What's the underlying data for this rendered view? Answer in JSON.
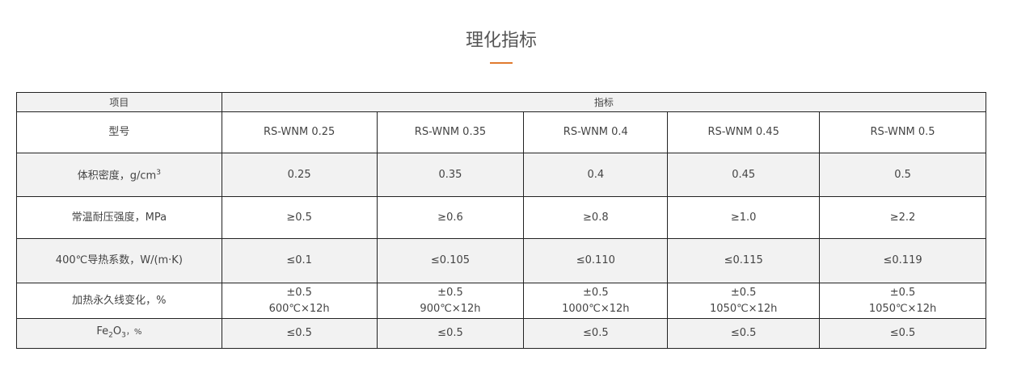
{
  "title": "理化指标",
  "accent_color": "#e07a2e",
  "table": {
    "header": {
      "item": "项目",
      "spec": "指标"
    },
    "rows": [
      {
        "label": "型号",
        "values": [
          "RS-WNM 0.25",
          "RS-WNM 0.35",
          "RS-WNM 0.4",
          "RS-WNM 0.45",
          "RS-WNM 0.5"
        ]
      },
      {
        "label": "体积密度，g/cm",
        "label_sup": "3",
        "values": [
          "0.25",
          "0.35",
          "0.4",
          "0.45",
          "0.5"
        ]
      },
      {
        "label": "常温耐压强度，MPa",
        "values": [
          "≥0.5",
          "≥0.6",
          "≥0.8",
          "≥1.0",
          "≥2.2"
        ]
      },
      {
        "label": "400℃导热系数，W/(m·K)",
        "values": [
          "≤0.1",
          "≤0.105",
          "≤0.110",
          "≤0.115",
          "≤0.119"
        ]
      },
      {
        "label": "加热永久线变化，%",
        "values": [
          "±0.5",
          "±0.5",
          "±0.5",
          "±0.5",
          "±0.5"
        ],
        "conditions": [
          "600℃×12h",
          "900℃×12h",
          "1000℃×12h",
          "1050℃×12h",
          "1050℃×12h"
        ]
      },
      {
        "label_parts": [
          "Fe",
          "2",
          "O",
          "3",
          "，%"
        ],
        "values": [
          "≤0.5",
          "≤0.5",
          "≤0.5",
          "≤0.5",
          "≤0.5"
        ]
      }
    ]
  }
}
